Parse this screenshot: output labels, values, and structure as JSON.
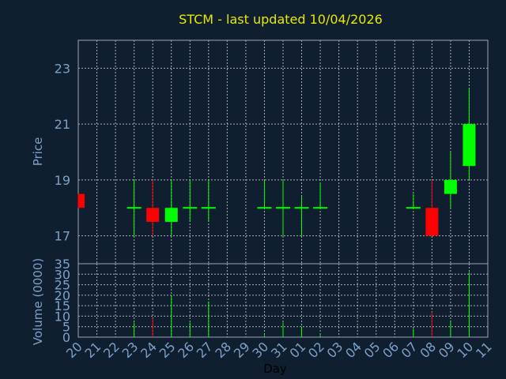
{
  "chart_data": {
    "type": "candlestick",
    "title": "STCM - last updated 10/04/2026",
    "xlabel": "Day",
    "ylabel_price": "Price",
    "ylabel_volume": "Volume (0000)",
    "days": [
      "20",
      "21",
      "22",
      "23",
      "24",
      "25",
      "26",
      "27",
      "28",
      "29",
      "30",
      "31",
      "01",
      "02",
      "03",
      "04",
      "05",
      "06",
      "07",
      "08",
      "09",
      "10",
      "11"
    ],
    "price_ticks": [
      17,
      19,
      21,
      23
    ],
    "price_range": [
      16,
      24
    ],
    "volume_ticks": [
      0,
      5,
      10,
      15,
      20,
      25,
      30,
      35
    ],
    "volume_range": [
      0,
      35
    ],
    "colors": {
      "up": "#00ff00",
      "down": "#ff0000",
      "flat": "#00ff00",
      "title": "#e8e800",
      "axis": "#7da0c8"
    },
    "candles": [
      {
        "day": "20",
        "open": 18.5,
        "high": 18.5,
        "low": 18.0,
        "close": 18.0,
        "volume": 0
      },
      {
        "day": "23",
        "open": 18.0,
        "high": 19.0,
        "low": 17.0,
        "close": 18.0,
        "volume": 7
      },
      {
        "day": "24",
        "open": 18.0,
        "high": 19.0,
        "low": 17.0,
        "close": 17.5,
        "volume": 9
      },
      {
        "day": "25",
        "open": 17.5,
        "high": 19.0,
        "low": 17.0,
        "close": 18.0,
        "volume": 20
      },
      {
        "day": "26",
        "open": 18.0,
        "high": 19.0,
        "low": 17.5,
        "close": 18.0,
        "volume": 7
      },
      {
        "day": "27",
        "open": 18.0,
        "high": 19.0,
        "low": 17.5,
        "close": 18.0,
        "volume": 17
      },
      {
        "day": "30",
        "open": 18.0,
        "high": 19.0,
        "low": 18.0,
        "close": 18.0,
        "volume": 1
      },
      {
        "day": "31",
        "open": 18.0,
        "high": 19.0,
        "low": 17.0,
        "close": 18.0,
        "volume": 7
      },
      {
        "day": "01",
        "open": 18.0,
        "high": 18.4,
        "low": 17.0,
        "close": 18.0,
        "volume": 5
      },
      {
        "day": "02",
        "open": 18.0,
        "high": 18.9,
        "low": 18.0,
        "close": 18.0,
        "volume": 1
      },
      {
        "day": "07",
        "open": 18.0,
        "high": 18.5,
        "low": 18.0,
        "close": 18.0,
        "volume": 4
      },
      {
        "day": "08",
        "open": 18.0,
        "high": 19.0,
        "low": 17.0,
        "close": 17.0,
        "volume": 12
      },
      {
        "day": "09",
        "open": 18.5,
        "high": 20.0,
        "low": 18.0,
        "close": 19.0,
        "volume": 8
      },
      {
        "day": "10",
        "open": 19.5,
        "high": 22.3,
        "low": 19.0,
        "close": 21.0,
        "volume": 31
      }
    ]
  }
}
